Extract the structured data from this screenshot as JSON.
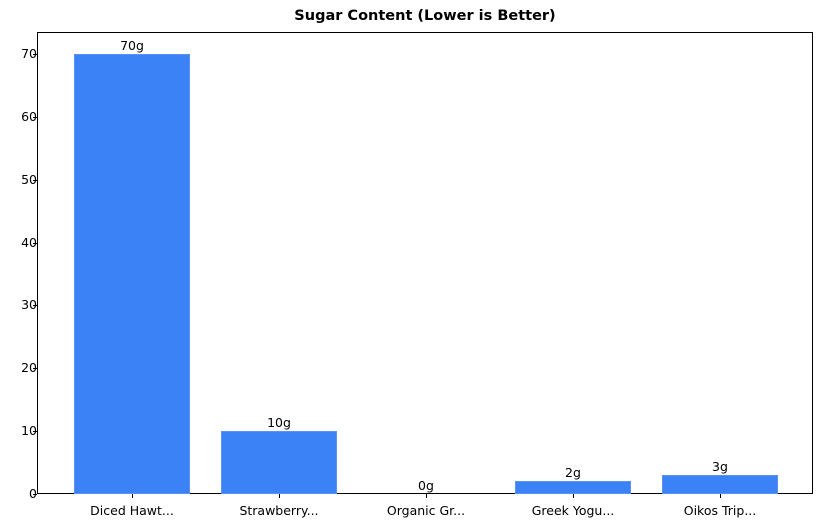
{
  "chart_data": {
    "type": "bar",
    "title": "Sugar Content (Lower is Better)",
    "xlabel": "",
    "ylabel": "",
    "categories": [
      "Diced Hawt...",
      "Strawberry...",
      "Organic Gr...",
      "Greek Yogu...",
      "Oikos Trip..."
    ],
    "values": [
      70,
      10,
      0,
      2,
      3
    ],
    "value_labels": [
      "70g",
      "10g",
      "0g",
      "2g",
      "3g"
    ],
    "ylim": [
      0,
      73.5
    ],
    "yticks": [
      0,
      10,
      20,
      30,
      40,
      50,
      60,
      70
    ],
    "grid": false,
    "legend": null,
    "bar_color": "#3b82f6"
  }
}
